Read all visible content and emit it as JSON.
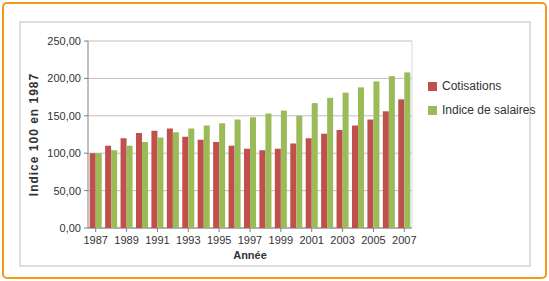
{
  "chart_data": {
    "type": "bar",
    "x_label": "Année",
    "y_label": "Indice 100 en 1987",
    "categories": [
      "1987",
      null,
      "1989",
      null,
      "1991",
      null,
      "1993",
      null,
      "1995",
      null,
      "1997",
      null,
      "1999",
      null,
      "2001",
      null,
      "2003",
      null,
      "2005",
      null,
      "2007"
    ],
    "series": [
      {
        "name": "Cotisations",
        "color": "#c0504d",
        "values": [
          100,
          110,
          120,
          127,
          130,
          133,
          122,
          118,
          115,
          110,
          106,
          104,
          106,
          113,
          120,
          126,
          131,
          137,
          145,
          156,
          172
        ]
      },
      {
        "name": "Indice de salaires",
        "color": "#9bbb59",
        "values": [
          100,
          104,
          110,
          115,
          121,
          128,
          133,
          137,
          140,
          145,
          148,
          153,
          157,
          150,
          167,
          174,
          181,
          188,
          196,
          203,
          208
        ]
      }
    ],
    "ylim": [
      0,
      250
    ],
    "yticks": [
      {
        "value": 0,
        "label": "0,00"
      },
      {
        "value": 50,
        "label": "50,00"
      },
      {
        "value": 100,
        "label": "100,00"
      },
      {
        "value": 150,
        "label": "150,00"
      },
      {
        "value": 200,
        "label": "200,00"
      },
      {
        "value": 250,
        "label": "250,00"
      }
    ],
    "grid": true,
    "legend": "right"
  }
}
